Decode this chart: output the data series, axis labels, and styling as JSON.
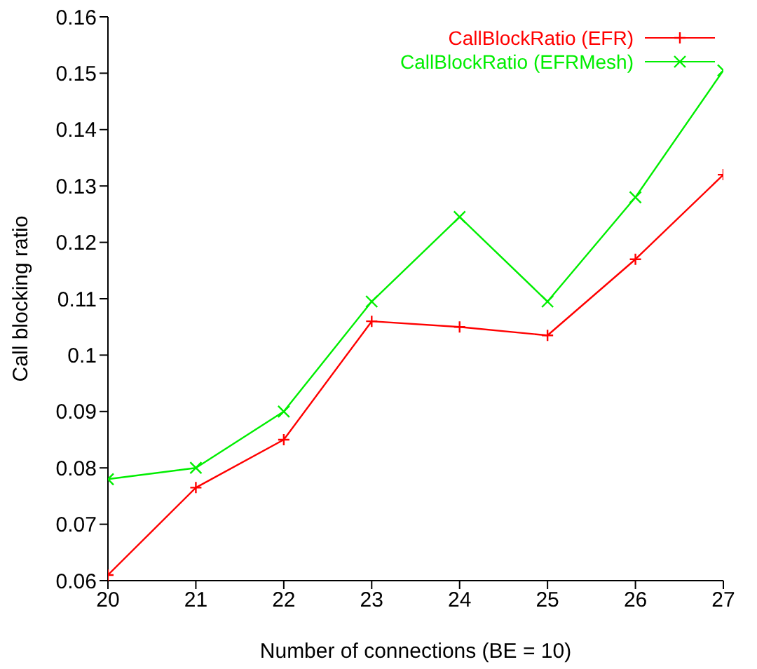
{
  "chart_data": {
    "type": "line",
    "xlabel": "Number of connections (BE = 10)",
    "ylabel": "Call blocking ratio",
    "x": [
      20,
      21,
      22,
      23,
      24,
      25,
      26,
      27
    ],
    "series": [
      {
        "name": "CallBlockRatio (EFR)",
        "color": "#ff0000",
        "values": [
          0.061,
          0.0765,
          0.085,
          0.106,
          0.105,
          0.1035,
          0.117,
          0.132
        ]
      },
      {
        "name": "CallBlockRatio (EFRMesh)",
        "color": "#00ee00",
        "values": [
          0.078,
          0.08,
          0.09,
          0.1095,
          0.1245,
          0.1095,
          0.128,
          0.1505
        ]
      }
    ],
    "xlim": [
      20,
      27
    ],
    "xticks": [
      20,
      21,
      22,
      23,
      24,
      25,
      26,
      27
    ],
    "ylim": [
      0.06,
      0.16
    ],
    "yticks": [
      0.06,
      0.07,
      0.08,
      0.09,
      0.1,
      0.11,
      0.12,
      0.13,
      0.14,
      0.15,
      0.16
    ],
    "legend": "top right",
    "marker": "cross",
    "line_style": "solid",
    "grid": false
  }
}
